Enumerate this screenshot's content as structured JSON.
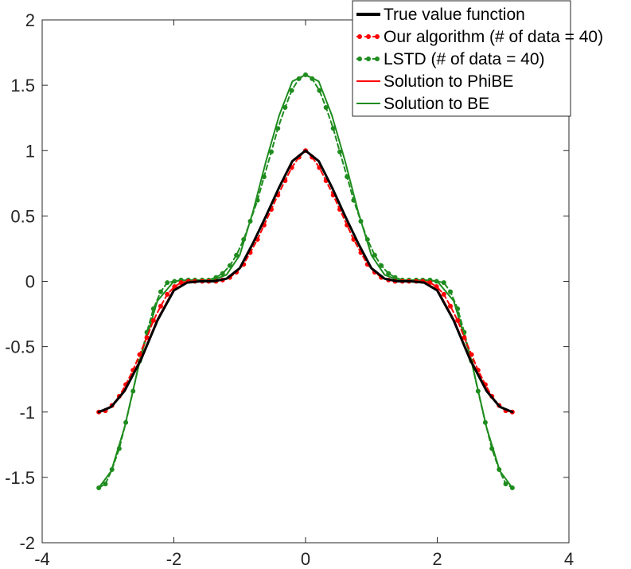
{
  "chart_data": {
    "type": "line",
    "title": "",
    "xlabel": "",
    "ylabel": "",
    "xlim": [
      -4,
      4
    ],
    "ylim": [
      -2,
      2
    ],
    "grid": false,
    "x_ticks": [
      -4,
      -2,
      0,
      2,
      4
    ],
    "y_ticks": [
      -2,
      -1.5,
      -1,
      -0.5,
      0,
      0.5,
      1,
      1.5,
      2
    ],
    "x_tick_labels": [
      "-4",
      "-2",
      "0",
      "2",
      "4"
    ],
    "y_tick_labels": [
      "-2",
      "-1.5",
      "-1",
      "-0.5",
      "0",
      "0.5",
      "1",
      "1.5",
      "2"
    ],
    "legend_position": "top-right",
    "series": [
      {
        "name": "True value function",
        "color": "#000000",
        "style": "solid",
        "marker": "none",
        "x": [
          -3.14,
          -2.95,
          -2.75,
          -2.5,
          -2.25,
          -2.0,
          -1.8,
          -1.6,
          -1.4,
          -1.2,
          -1.0,
          -0.8,
          -0.6,
          -0.4,
          -0.2,
          0.0,
          0.2,
          0.4,
          0.6,
          0.8,
          1.0,
          1.2,
          1.4,
          1.6,
          1.8,
          2.0,
          2.25,
          2.5,
          2.75,
          2.95,
          3.14
        ],
        "y": [
          -1.0,
          -0.96,
          -0.84,
          -0.6,
          -0.3,
          -0.07,
          -0.01,
          0.0,
          0.0,
          0.02,
          0.1,
          0.29,
          0.5,
          0.72,
          0.92,
          1.0,
          0.92,
          0.72,
          0.5,
          0.29,
          0.1,
          0.02,
          0.0,
          0.0,
          -0.01,
          -0.07,
          -0.3,
          -0.6,
          -0.84,
          -0.96,
          -1.0
        ]
      },
      {
        "name": "Our algorithm (# of data = 40)",
        "color": "#ff0000",
        "style": "dashed",
        "marker": "dot",
        "x": [
          -3.14,
          -3.04,
          -2.94,
          -2.83,
          -2.73,
          -2.62,
          -2.52,
          -2.41,
          -2.31,
          -2.2,
          -2.1,
          -1.99,
          -1.89,
          -1.78,
          -1.68,
          -1.57,
          -1.47,
          -1.36,
          -1.26,
          -1.15,
          -1.05,
          -0.94,
          -0.84,
          -0.73,
          -0.63,
          -0.52,
          -0.42,
          -0.31,
          -0.21,
          -0.1,
          0.0,
          0.1,
          0.21,
          0.31,
          0.42,
          0.52,
          0.63,
          0.73,
          0.84,
          0.94,
          1.05,
          1.15,
          1.26,
          1.36,
          1.47,
          1.57,
          1.68,
          1.78,
          1.89,
          1.99,
          2.1,
          2.2,
          2.31,
          2.41,
          2.52,
          2.62,
          2.73,
          2.83,
          2.94,
          3.04,
          3.14
        ],
        "y": [
          -1.0,
          -0.99,
          -0.95,
          -0.88,
          -0.79,
          -0.68,
          -0.56,
          -0.43,
          -0.3,
          -0.19,
          -0.1,
          -0.04,
          -0.01,
          0.0,
          0.0,
          0.0,
          0.0,
          0.0,
          0.01,
          0.03,
          0.07,
          0.13,
          0.22,
          0.32,
          0.43,
          0.55,
          0.66,
          0.77,
          0.87,
          0.95,
          1.0,
          0.95,
          0.87,
          0.77,
          0.66,
          0.55,
          0.43,
          0.32,
          0.22,
          0.13,
          0.07,
          0.03,
          0.01,
          0.0,
          0.0,
          0.0,
          0.0,
          0.0,
          -0.01,
          -0.04,
          -0.1,
          -0.19,
          -0.3,
          -0.43,
          -0.56,
          -0.68,
          -0.79,
          -0.88,
          -0.95,
          -0.99,
          -1.0
        ]
      },
      {
        "name": "LSTD (# of data = 40)",
        "color": "#1e8c1e",
        "style": "dashed",
        "marker": "dot",
        "x": [
          -3.14,
          -3.04,
          -2.94,
          -2.83,
          -2.73,
          -2.62,
          -2.52,
          -2.41,
          -2.31,
          -2.2,
          -2.1,
          -1.99,
          -1.89,
          -1.78,
          -1.68,
          -1.57,
          -1.47,
          -1.36,
          -1.26,
          -1.15,
          -1.05,
          -0.94,
          -0.84,
          -0.73,
          -0.63,
          -0.52,
          -0.42,
          -0.31,
          -0.21,
          -0.1,
          0.0,
          0.1,
          0.21,
          0.31,
          0.42,
          0.52,
          0.63,
          0.73,
          0.84,
          0.94,
          1.05,
          1.15,
          1.26,
          1.36,
          1.47,
          1.57,
          1.68,
          1.78,
          1.89,
          1.99,
          2.1,
          2.2,
          2.31,
          2.41,
          2.52,
          2.62,
          2.73,
          2.83,
          2.94,
          3.04,
          3.14
        ],
        "y": [
          -1.58,
          -1.55,
          -1.44,
          -1.28,
          -1.08,
          -0.84,
          -0.61,
          -0.39,
          -0.21,
          -0.08,
          -0.01,
          0.0,
          0.01,
          0.01,
          0.01,
          0.01,
          0.01,
          0.03,
          0.06,
          0.12,
          0.2,
          0.32,
          0.46,
          0.62,
          0.8,
          0.99,
          1.17,
          1.33,
          1.46,
          1.55,
          1.58,
          1.55,
          1.46,
          1.33,
          1.17,
          0.99,
          0.8,
          0.62,
          0.46,
          0.32,
          0.2,
          0.12,
          0.06,
          0.03,
          0.01,
          0.01,
          0.01,
          0.01,
          0.01,
          0.0,
          -0.01,
          -0.08,
          -0.21,
          -0.39,
          -0.61,
          -0.84,
          -1.08,
          -1.28,
          -1.44,
          -1.55,
          -1.58
        ]
      },
      {
        "name": "Solution to PhiBE",
        "color": "#ff0000",
        "style": "solid",
        "marker": "none",
        "x": [
          -3.14,
          -2.95,
          -2.75,
          -2.5,
          -2.25,
          -2.0,
          -1.8,
          -1.6,
          -1.4,
          -1.2,
          -1.0,
          -0.8,
          -0.6,
          -0.4,
          -0.2,
          0.0,
          0.2,
          0.4,
          0.6,
          0.8,
          1.0,
          1.2,
          1.4,
          1.6,
          1.8,
          2.0,
          2.25,
          2.5,
          2.75,
          2.95,
          3.14
        ],
        "y": [
          -1.0,
          -0.96,
          -0.83,
          -0.59,
          -0.29,
          -0.06,
          -0.01,
          0.0,
          0.0,
          0.02,
          0.1,
          0.29,
          0.5,
          0.72,
          0.92,
          1.0,
          0.92,
          0.72,
          0.5,
          0.29,
          0.1,
          0.02,
          0.0,
          0.0,
          -0.01,
          -0.06,
          -0.29,
          -0.59,
          -0.83,
          -0.96,
          -1.0
        ]
      },
      {
        "name": "Solution to BE",
        "color": "#1e8c1e",
        "style": "solid",
        "marker": "none",
        "x": [
          -3.14,
          -2.95,
          -2.75,
          -2.5,
          -2.25,
          -2.0,
          -1.8,
          -1.6,
          -1.4,
          -1.2,
          -1.0,
          -0.8,
          -0.6,
          -0.4,
          -0.2,
          0.0,
          0.2,
          0.4,
          0.6,
          0.8,
          1.0,
          1.2,
          1.4,
          1.6,
          1.8,
          2.0,
          2.25,
          2.5,
          2.75,
          2.95,
          3.14
        ],
        "y": [
          -1.58,
          -1.45,
          -1.12,
          -0.57,
          -0.15,
          0.0,
          0.01,
          0.01,
          0.01,
          0.05,
          0.2,
          0.53,
          0.92,
          1.27,
          1.53,
          1.58,
          1.53,
          1.27,
          0.92,
          0.53,
          0.2,
          0.05,
          0.01,
          0.01,
          0.01,
          0.0,
          -0.15,
          -0.57,
          -1.12,
          -1.45,
          -1.58
        ]
      }
    ]
  }
}
